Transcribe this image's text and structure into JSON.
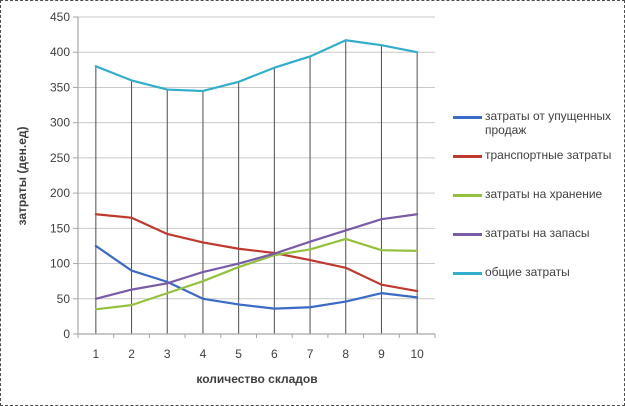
{
  "chart_data": {
    "type": "line",
    "title": "",
    "xlabel": "количество складов",
    "ylabel": "затраты (ден.ед)",
    "x": [
      1,
      2,
      3,
      4,
      5,
      6,
      7,
      8,
      9,
      10
    ],
    "xtick_labels": [
      "1",
      "2",
      "3",
      "4",
      "5",
      "6",
      "7",
      "8",
      "9",
      "10"
    ],
    "ylim": [
      0,
      450
    ],
    "yticks": [
      0,
      50,
      100,
      150,
      200,
      250,
      300,
      350,
      400,
      450
    ],
    "grid": "horizontal gridlines every 50; vertical drop lines from total-costs points to x-axis",
    "legend_position": "right",
    "drop_lines_series": 4,
    "series": [
      {
        "name": "затраты от упущенных продаж",
        "color": "#3a6bc6",
        "values": [
          125,
          90,
          74,
          50,
          42,
          36,
          38,
          46,
          58,
          52
        ]
      },
      {
        "name": "транспортные затраты",
        "color": "#c0392e",
        "values": [
          170,
          165,
          142,
          130,
          121,
          115,
          105,
          94,
          70,
          61
        ]
      },
      {
        "name": "затраты на хранение",
        "color": "#94c13d",
        "values": [
          35,
          41,
          58,
          75,
          95,
          112,
          120,
          135,
          119,
          118
        ]
      },
      {
        "name": "затраты на запасы",
        "color": "#7a5ba8",
        "values": [
          50,
          63,
          72,
          88,
          100,
          114,
          131,
          147,
          163,
          170
        ]
      },
      {
        "name": "общие затраты",
        "color": "#31aecb",
        "values": [
          380,
          360,
          347,
          345,
          358,
          378,
          394,
          417,
          410,
          400
        ]
      }
    ]
  },
  "colors": {
    "gridline": "#c9c9c9",
    "axis": "#a6a6a6",
    "dropline": "#4d4d4d",
    "text": "#3f3f3f",
    "background": "#ffffff"
  }
}
